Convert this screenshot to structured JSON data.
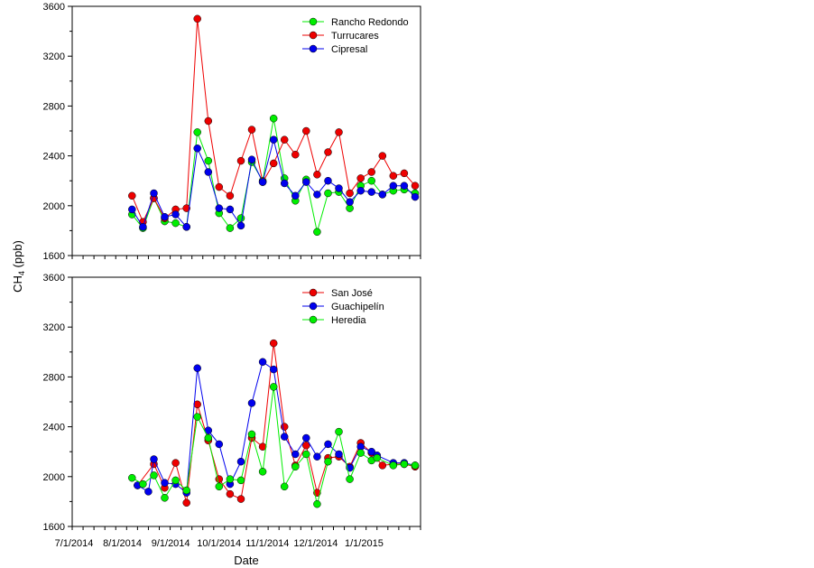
{
  "chart_data": {
    "type": "line",
    "y_title_main": "CH",
    "y_title_sub": "4",
    "y_title_unit": " (ppb)",
    "x_title": "Date",
    "x_tick_labels": [
      "7/1/2014",
      "8/1/2014",
      "9/1/2014",
      "10/1/2014",
      "11/1/2014",
      "12/1/2014",
      "1/1/2015"
    ],
    "panels": [
      {
        "ylim": [
          1600,
          3600
        ],
        "yticks": [
          1600,
          2000,
          2400,
          2800,
          3200,
          3600
        ],
        "legend_position": "top-right",
        "series": [
          {
            "name": "Rancho Redondo",
            "color": "#00ee00",
            "x": [
              5.5,
              6.5,
              7.5,
              8.5,
              9.5,
              10.5,
              11.5,
              12.5,
              13.5,
              14.5,
              15.5,
              16.5,
              17.5,
              18.5,
              19.5,
              20.5,
              21.5,
              22.5,
              23.5,
              24.5,
              25.5,
              26.5,
              27.5,
              28.5,
              29.5,
              30.5,
              31.5
            ],
            "y": [
              1930,
              1820,
              2060,
              1875,
              1860,
              1830,
              2590,
              2360,
              1940,
              1820,
              1900,
              2350,
              2200,
              2700,
              2220,
              2040,
              2210,
              1790,
              2100,
              2110,
              1980,
              2160,
              2200,
              2090,
              2120,
              2130,
              2100
            ]
          },
          {
            "name": "Turrucares",
            "color": "#ee0000",
            "x": [
              5.5,
              6.5,
              7.5,
              8.5,
              9.5,
              10.5,
              11.5,
              12.5,
              13.5,
              14.5,
              15.5,
              16.5,
              17.5,
              18.5,
              19.5,
              20.5,
              21.5,
              22.5,
              23.5,
              24.5,
              25.5,
              26.5,
              27.5,
              28.5,
              29.5,
              30.5,
              31.5
            ],
            "y": [
              2080,
              1870,
              2060,
              1900,
              1970,
              1980,
              3500,
              2680,
              2150,
              2080,
              2360,
              2610,
              2190,
              2340,
              2530,
              2410,
              2600,
              2250,
              2430,
              2590,
              2100,
              2220,
              2270,
              2400,
              2240,
              2260,
              2160
            ]
          },
          {
            "name": "Cipresal",
            "color": "#0000ee",
            "x": [
              5.5,
              6.5,
              7.5,
              8.5,
              9.5,
              10.5,
              11.5,
              12.5,
              13.5,
              14.5,
              15.5,
              16.5,
              17.5,
              18.5,
              19.5,
              20.5,
              21.5,
              22.5,
              23.5,
              24.5,
              25.5,
              26.5,
              27.5,
              28.5,
              29.5,
              30.5,
              31.5
            ],
            "y": [
              1970,
              1830,
              2100,
              1910,
              1930,
              1830,
              2460,
              2270,
              1980,
              1970,
              1840,
              2370,
              2190,
              2530,
              2180,
              2080,
              2190,
              2090,
              2200,
              2140,
              2030,
              2120,
              2110,
              2090,
              2160,
              2160,
              2070
            ]
          }
        ]
      },
      {
        "ylim": [
          1600,
          3600
        ],
        "yticks": [
          1600,
          2000,
          2400,
          2800,
          3200,
          3600
        ],
        "legend_position": "top-right",
        "series": [
          {
            "name": "San José",
            "color": "#ee0000",
            "x": [
              6,
              7.5,
              8.5,
              9.5,
              10.5,
              11.5,
              12.5,
              13.5,
              14.5,
              15.5,
              16.5,
              17.5,
              18.5,
              19.5,
              20.5,
              21.5,
              22.5,
              23.5,
              24.5,
              25.5,
              26.5,
              27.5,
              28.5,
              29.5,
              30.5,
              31.5
            ],
            "y": [
              1930,
              2100,
              1910,
              2110,
              1790,
              2580,
              2290,
              1980,
              1860,
              1820,
              2310,
              2240,
              3070,
              2400,
              2090,
              2250,
              1870,
              2150,
              2160,
              2080,
              2270,
              2190,
              2090,
              2100,
              2100,
              2080
            ]
          },
          {
            "name": "Guachipelín",
            "color": "#0000ee",
            "x": [
              6,
              7,
              7.5,
              8.5,
              9.5,
              10.5,
              11.5,
              12.5,
              13.5,
              14.5,
              15.5,
              16.5,
              17.5,
              18.5,
              19.5,
              20.5,
              21.5,
              22.5,
              23.5,
              24.5,
              25.5,
              26.5,
              27.5,
              28,
              29.5,
              30.5,
              31.5
            ],
            "y": [
              1930,
              1880,
              2140,
              1950,
              1940,
              1870,
              2870,
              2370,
              2260,
              1940,
              2120,
              2590,
              2920,
              2860,
              2320,
              2180,
              2310,
              2160,
              2260,
              2180,
              2070,
              2240,
              2200,
              2170,
              2110,
              2110,
              2090
            ]
          },
          {
            "name": "Heredia",
            "color": "#00ee00",
            "x": [
              5.5,
              6.5,
              7.5,
              8.5,
              9.5,
              10.5,
              11.5,
              12.5,
              13.5,
              14.5,
              15.5,
              16.5,
              17.5,
              18.5,
              19.5,
              20.5,
              21.5,
              22.5,
              23.5,
              24.5,
              25.5,
              26.5,
              27.5,
              28,
              29.5,
              30.5,
              31.5
            ],
            "y": [
              1990,
              1940,
              2010,
              1830,
              1970,
              1890,
              2480,
              2310,
              1920,
              1980,
              1970,
              2340,
              2040,
              2720,
              1920,
              2080,
              2180,
              1780,
              2120,
              2360,
              1980,
              2190,
              2130,
              2150,
              2090,
              2100,
              2090
            ]
          }
        ]
      }
    ]
  }
}
